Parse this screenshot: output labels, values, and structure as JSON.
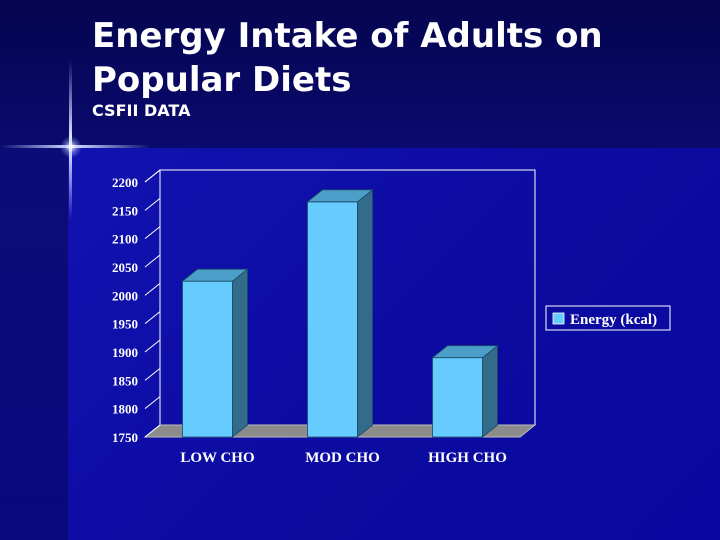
{
  "slide": {
    "title_line1": "Energy Intake of Adults on",
    "title_line2": "Popular Diets",
    "subtitle": "CSFII DATA"
  },
  "colors": {
    "bar_front": "#66ccff",
    "bar_side": "#336b8a",
    "bar_top": "#4a9ec8",
    "floor": "#8c8c8c",
    "text": "#ffffff",
    "background": "#0a0a8c"
  },
  "chart_data": {
    "type": "bar",
    "title": "",
    "categories": [
      "LOW CHO",
      "MOD CHO",
      "HIGH CHO"
    ],
    "series": [
      {
        "name": "Energy (kcal)",
        "values": [
          2025,
          2165,
          1890
        ]
      }
    ],
    "ylim": [
      1750,
      2200
    ],
    "yticks": [
      1750,
      1800,
      1850,
      1900,
      1950,
      2000,
      2050,
      2100,
      2150,
      2200
    ],
    "xlabel": "",
    "ylabel": "",
    "legend_position": "right",
    "grid": false,
    "style": "3d-column"
  }
}
